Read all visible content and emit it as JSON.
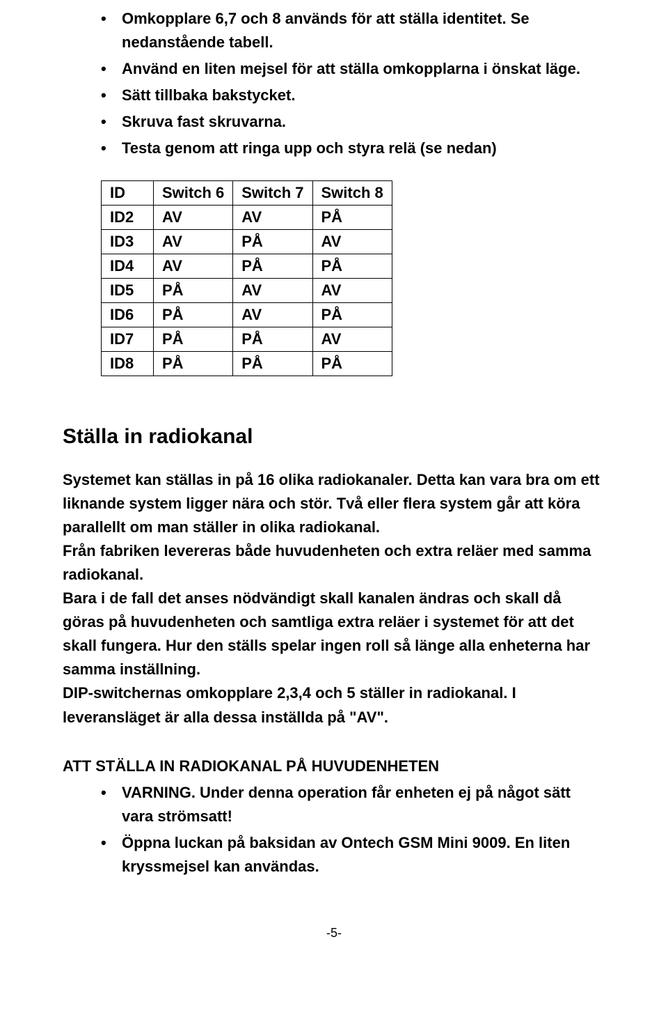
{
  "bullets_top": [
    "Omkopplare 6,7 och 8 används för att ställa identitet. Se nedanstående tabell.",
    "Använd en liten mejsel för att ställa omkopplarna i önskat läge.",
    "Sätt tillbaka bakstycket.",
    "Skruva fast skruvarna.",
    "Testa genom att ringa upp och styra relä (se nedan)"
  ],
  "switch_table": {
    "headers": [
      "ID",
      "Switch 6",
      "Switch 7",
      "Switch 8"
    ],
    "rows": [
      [
        "ID2",
        "AV",
        "AV",
        "PÅ"
      ],
      [
        "ID3",
        "AV",
        "PÅ",
        "AV"
      ],
      [
        "ID4",
        "AV",
        "PÅ",
        "PÅ"
      ],
      [
        "ID5",
        "PÅ",
        "AV",
        "AV"
      ],
      [
        "ID6",
        "PÅ",
        "AV",
        "PÅ"
      ],
      [
        "ID7",
        "PÅ",
        "PÅ",
        "AV"
      ],
      [
        "ID8",
        "PÅ",
        "PÅ",
        "PÅ"
      ]
    ]
  },
  "section_heading": "Ställa in radiokanal",
  "paragraphs": [
    "Systemet kan ställas in på 16 olika radiokanaler. Detta kan vara bra om ett liknande system ligger nära och stör. Två eller flera system går att köra parallellt om man ställer in olika radiokanal.",
    "Från fabriken levereras både huvudenheten och extra reläer med samma radiokanal.",
    "Bara i de fall det anses nödvändigt skall kanalen ändras och skall då göras på huvudenheten och samtliga extra reläer i systemet för att det skall fungera. Hur den ställs spelar ingen roll så länge alla enheterna har samma inställning.",
    "DIP-switchernas omkopplare 2,3,4 och 5 ställer in radiokanal. I leveransläget är alla dessa inställda på \"AV\"."
  ],
  "subheading": "ATT STÄLLA IN RADIOKANAL PÅ HUVUDENHETEN",
  "bullets_bottom": [
    "VARNING. Under denna operation får enheten ej på något sätt vara strömsatt!",
    "Öppna luckan på baksidan av Ontech GSM Mini 9009. En liten kryssmejsel kan användas."
  ],
  "page_number": "-5-"
}
